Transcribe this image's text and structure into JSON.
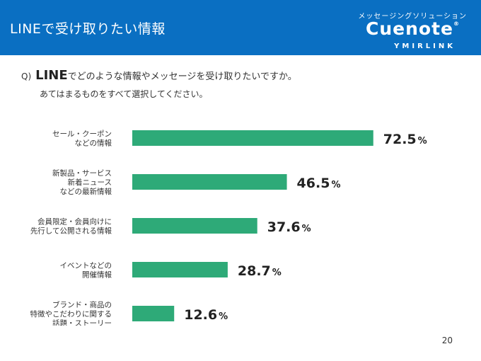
{
  "header": {
    "title": "LINEで受け取りたい情報",
    "brand_tagline": "メッセージングソリューション",
    "brand_logo": "Cuenote",
    "brand_registered": "®",
    "brand_company": "YMIRLINK"
  },
  "question": {
    "prefix": "Q)",
    "strong": "LINE",
    "line1_rest": "でどのような情報やメッセージを受け取りたいですか。",
    "line2": "あてはまるものをすべて選択してください。"
  },
  "chart_data": {
    "type": "bar",
    "orientation": "horizontal",
    "categories": [
      [
        "セール・クーポン",
        "などの情報"
      ],
      [
        "新製品・サービス",
        "新着ニュース",
        "などの最新情報"
      ],
      [
        "会員限定・会員向けに",
        "先行して公開される情報"
      ],
      [
        "イベントなどの",
        "開催情報"
      ],
      [
        "ブランド・商品の",
        "特徴やこだわりに関する",
        "話題・ストーリー"
      ]
    ],
    "values": [
      72.5,
      46.5,
      37.6,
      28.7,
      12.6
    ],
    "value_labels": [
      "72.5",
      "46.5",
      "37.6",
      "28.7",
      "12.6"
    ],
    "unit": "%",
    "xlim": [
      0,
      100
    ],
    "grid": false,
    "bar_color": "#2eaa78"
  },
  "footer": {
    "page_number": "20"
  }
}
